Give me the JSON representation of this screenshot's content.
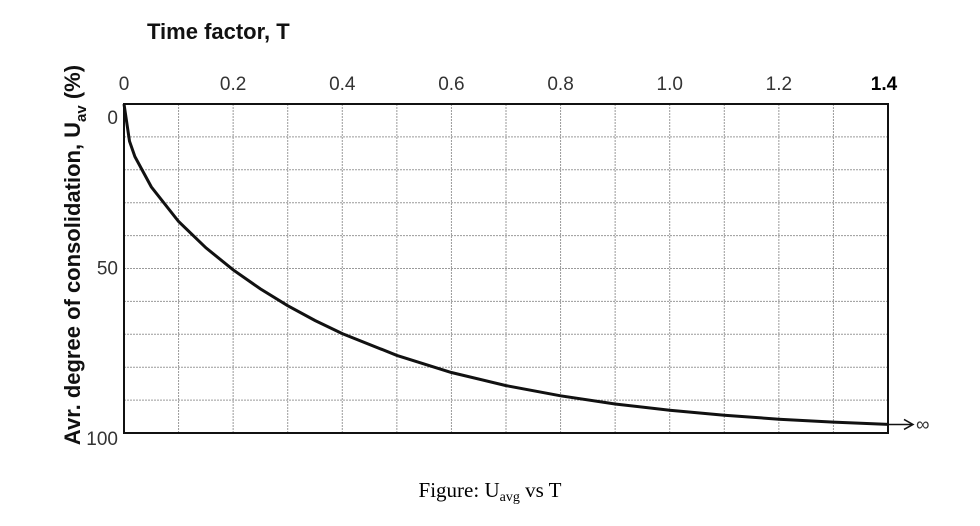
{
  "chart_data": {
    "type": "line",
    "xlabel": "Time factor, T",
    "ylabel_main": "Avr. degree of consolidation, U",
    "ylabel_sub": "av",
    "ylabel_unit": " (%)",
    "xlim": [
      0,
      1.4
    ],
    "ylim": [
      0,
      100
    ],
    "y_inverted": true,
    "x_axis_position": "top",
    "grid": true,
    "x_ticks": [
      "0",
      "0.2",
      "0.4",
      "0.6",
      "0.8",
      "1.0",
      "1.2",
      "1.4"
    ],
    "y_ticks": [
      "0",
      "50",
      "100"
    ],
    "end_label": "∞",
    "series": [
      {
        "x": [
          0,
          0.01,
          0.02,
          0.05,
          0.1,
          0.15,
          0.2,
          0.25,
          0.3,
          0.35,
          0.4,
          0.5,
          0.6,
          0.7,
          0.8,
          0.9,
          1.0,
          1.1,
          1.2,
          1.3,
          1.4
        ],
        "y": [
          0,
          11.3,
          16.0,
          25.2,
          35.7,
          43.7,
          50.4,
          56.2,
          61.3,
          65.8,
          69.8,
          76.4,
          81.6,
          85.6,
          88.7,
          91.2,
          93.1,
          94.6,
          95.8,
          96.7,
          97.4
        ]
      }
    ]
  },
  "caption": {
    "prefix": "Figure: U",
    "sub": "avg",
    "suffix": " vs T"
  }
}
